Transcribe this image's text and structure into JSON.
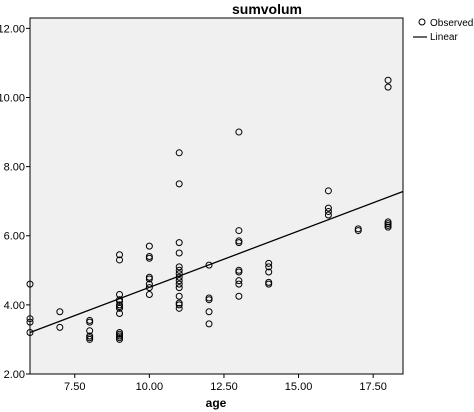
{
  "chart_data": {
    "type": "scatter",
    "title": "sumvolum",
    "xlabel": "age",
    "ylabel": "",
    "xlim": [
      6,
      18.5
    ],
    "ylim": [
      2,
      12.3
    ],
    "xticks": [
      7.5,
      10,
      12.5,
      15,
      17.5
    ],
    "xtick_labels": [
      "7.50",
      "10.00",
      "12.50",
      "15.00",
      "17.50"
    ],
    "yticks": [
      2,
      4,
      6,
      8,
      10,
      12
    ],
    "ytick_labels": [
      "2.00",
      "4.00",
      "6.00",
      "8.00",
      "10.00",
      "12.00"
    ],
    "grid": false,
    "legend": {
      "position": "top-right",
      "entries": [
        "Observed",
        "Linear"
      ]
    },
    "series": [
      {
        "name": "Observed",
        "marker": "open-circle",
        "x": [
          6,
          6,
          6,
          6,
          7,
          7,
          8,
          8,
          8,
          8,
          8,
          8,
          9,
          9,
          9,
          9,
          9,
          9,
          9,
          9,
          9,
          9,
          9,
          9,
          9,
          9,
          10,
          10,
          10,
          10,
          10,
          10,
          10,
          10,
          11,
          11,
          11,
          11,
          11,
          11,
          11,
          11,
          11,
          11,
          11,
          11,
          11,
          11,
          11,
          12,
          12,
          12,
          12,
          12,
          13,
          13,
          13,
          13,
          13,
          13,
          13,
          13,
          13,
          14,
          14,
          14,
          14,
          14,
          16,
          16,
          16,
          16,
          17,
          17,
          18,
          18,
          18,
          18,
          18,
          18
        ],
        "y": [
          4.6,
          3.6,
          3.5,
          3.2,
          3.8,
          3.35,
          3.55,
          3.5,
          3.25,
          3.1,
          3.05,
          3.0,
          5.45,
          5.3,
          4.3,
          4.15,
          4.1,
          4.0,
          3.95,
          3.9,
          3.75,
          3.2,
          3.15,
          3.1,
          3.05,
          3.0,
          5.7,
          5.4,
          5.35,
          4.8,
          4.75,
          4.6,
          4.5,
          4.3,
          8.4,
          7.5,
          5.8,
          5.5,
          5.1,
          5.0,
          4.9,
          4.8,
          4.7,
          4.6,
          4.5,
          4.25,
          4.05,
          4.0,
          3.9,
          5.15,
          4.15,
          3.8,
          3.45,
          4.2,
          9.0,
          6.15,
          5.85,
          5.8,
          5.0,
          4.95,
          4.7,
          4.6,
          4.25,
          5.2,
          5.1,
          4.95,
          4.65,
          4.6,
          7.3,
          6.8,
          6.7,
          6.6,
          6.2,
          6.15,
          10.5,
          10.3,
          6.4,
          6.35,
          6.3,
          6.25
        ]
      },
      {
        "name": "Linear",
        "type": "line",
        "x": [
          6,
          18.5
        ],
        "y": [
          3.2,
          7.28
        ]
      }
    ]
  }
}
